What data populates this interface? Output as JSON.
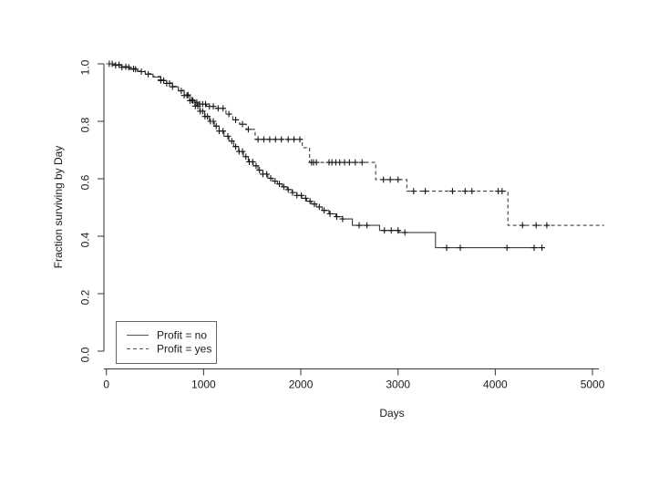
{
  "figure": {
    "background": "#ffffff",
    "axis_color": "#333333",
    "text_color": "#1a1a1a"
  },
  "chart_data": {
    "type": "line",
    "subtype": "kaplan-meier-step",
    "title": "",
    "xlabel": "Days",
    "ylabel": "Fraction surviving by Day",
    "xlim": [
      0,
      5157
    ],
    "ylim": [
      0.0,
      1.0
    ],
    "grid": false,
    "xticks": {
      "values": [
        0,
        1000,
        2000,
        3000,
        4000,
        5000
      ],
      "labels": [
        "0",
        "1000",
        "2000",
        "3000",
        "4000",
        "5000"
      ]
    },
    "yticks": {
      "values": [
        0.0,
        0.2,
        0.4,
        0.6,
        0.8,
        1.0
      ],
      "labels": [
        "0.0",
        "0.2",
        "0.4",
        "0.6",
        "0.8",
        "1.0"
      ]
    },
    "legend": {
      "position": "bottom-left",
      "border": true,
      "entries": [
        {
          "label": "Profit = no",
          "linestyle": "solid"
        },
        {
          "label": "Profit = yes",
          "linestyle": "dashed"
        }
      ]
    },
    "series": [
      {
        "name": "Profit = no",
        "linestyle": "solid",
        "color": "#3d3d3d",
        "end_day": 4510,
        "steps": [
          [
            0,
            1.0
          ],
          [
            80,
            0.995
          ],
          [
            160,
            0.988
          ],
          [
            240,
            0.981
          ],
          [
            320,
            0.973
          ],
          [
            400,
            0.964
          ],
          [
            480,
            0.954
          ],
          [
            560,
            0.942
          ],
          [
            620,
            0.932
          ],
          [
            680,
            0.92
          ],
          [
            740,
            0.906
          ],
          [
            800,
            0.89
          ],
          [
            860,
            0.872
          ],
          [
            910,
            0.853
          ],
          [
            960,
            0.835
          ],
          [
            1010,
            0.817
          ],
          [
            1060,
            0.8
          ],
          [
            1110,
            0.783
          ],
          [
            1160,
            0.766
          ],
          [
            1210,
            0.748
          ],
          [
            1260,
            0.731
          ],
          [
            1310,
            0.712
          ],
          [
            1360,
            0.695
          ],
          [
            1410,
            0.677
          ],
          [
            1460,
            0.659
          ],
          [
            1510,
            0.645
          ],
          [
            1560,
            0.63
          ],
          [
            1610,
            0.616
          ],
          [
            1660,
            0.602
          ],
          [
            1710,
            0.592
          ],
          [
            1760,
            0.582
          ],
          [
            1810,
            0.572
          ],
          [
            1860,
            0.562
          ],
          [
            1910,
            0.552
          ],
          [
            1960,
            0.542
          ],
          [
            2010,
            0.532
          ],
          [
            2060,
            0.522
          ],
          [
            2110,
            0.512
          ],
          [
            2160,
            0.502
          ],
          [
            2220,
            0.49
          ],
          [
            2290,
            0.478
          ],
          [
            2360,
            0.468
          ],
          [
            2430,
            0.46
          ],
          [
            2530,
            0.438
          ],
          [
            2810,
            0.42
          ],
          [
            3010,
            0.413
          ],
          [
            3385,
            0.36
          ]
        ],
        "censor_days": [
          30,
          95,
          160,
          230,
          300,
          360,
          430,
          560,
          590,
          620,
          650,
          680,
          770,
          800,
          830,
          860,
          890,
          915,
          940,
          965,
          990,
          1015,
          1040,
          1070,
          1100,
          1130,
          1160,
          1200,
          1250,
          1290,
          1330,
          1365,
          1400,
          1435,
          1470,
          1505,
          1540,
          1575,
          1610,
          1650,
          1690,
          1735,
          1780,
          1825,
          1870,
          1915,
          1960,
          2005,
          2050,
          2095,
          2140,
          2190,
          2240,
          2300,
          2370,
          2430,
          2600,
          2680,
          2860,
          2930,
          3000,
          3070,
          3500,
          3640,
          4120,
          4400,
          4480
        ]
      },
      {
        "name": "Profit = yes",
        "linestyle": "dashed",
        "color": "#3d3d3d",
        "end_day": 5120,
        "steps": [
          [
            0,
            1.0
          ],
          [
            80,
            0.997
          ],
          [
            160,
            0.99
          ],
          [
            240,
            0.983
          ],
          [
            320,
            0.975
          ],
          [
            400,
            0.966
          ],
          [
            480,
            0.956
          ],
          [
            560,
            0.944
          ],
          [
            620,
            0.934
          ],
          [
            680,
            0.922
          ],
          [
            740,
            0.908
          ],
          [
            800,
            0.892
          ],
          [
            860,
            0.874
          ],
          [
            900,
            0.866
          ],
          [
            950,
            0.86
          ],
          [
            1030,
            0.852
          ],
          [
            1120,
            0.845
          ],
          [
            1230,
            0.825
          ],
          [
            1300,
            0.805
          ],
          [
            1370,
            0.79
          ],
          [
            1440,
            0.772
          ],
          [
            1530,
            0.737
          ],
          [
            2015,
            0.708
          ],
          [
            2090,
            0.657
          ],
          [
            2770,
            0.597
          ],
          [
            3090,
            0.557
          ],
          [
            4130,
            0.438
          ]
        ],
        "censor_days": [
          60,
          130,
          200,
          280,
          560,
          840,
          880,
          930,
          960,
          990,
          1020,
          1060,
          1100,
          1150,
          1200,
          1260,
          1330,
          1400,
          1460,
          1560,
          1620,
          1680,
          1740,
          1800,
          1870,
          1930,
          1990,
          2110,
          2130,
          2160,
          2290,
          2320,
          2360,
          2400,
          2450,
          2500,
          2560,
          2630,
          2850,
          2920,
          3000,
          3160,
          3280,
          3560,
          3690,
          3760,
          4030,
          4070,
          4280,
          4420,
          4530
        ]
      }
    ]
  }
}
